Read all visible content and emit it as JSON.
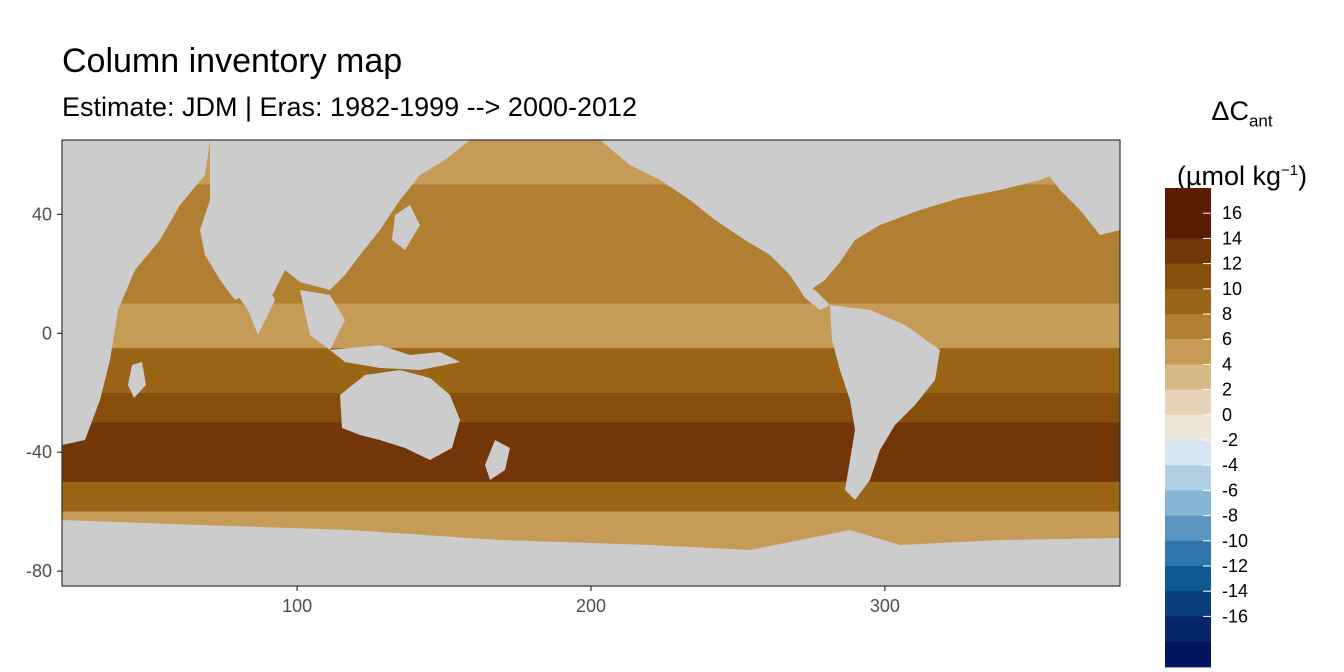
{
  "title": "Column inventory map",
  "subtitle": "Estimate: JDM  | Eras: 1982-1999 --> 2000-2012",
  "legend": {
    "title_symbol": "ΔC",
    "title_sub": "ant",
    "unit_prefix": "(µmol kg",
    "unit_sup": "−1",
    "unit_suffix": ")"
  },
  "chart_data": {
    "type": "heatmap",
    "title": "Column inventory map",
    "subtitle": "Estimate: JDM  | Eras: 1982-1999 --> 2000-2012",
    "xlim": [
      20,
      380
    ],
    "ylim": [
      -85,
      65
    ],
    "x_ticks": [
      100,
      200,
      300
    ],
    "y_ticks": [
      40,
      0,
      -40,
      -80
    ],
    "land_color": "#cccccc",
    "legend_bins": [
      {
        "label": "16",
        "color": "#5c1b03"
      },
      {
        "label": "14",
        "color": "#733608"
      },
      {
        "label": "12",
        "color": "#864f0b"
      },
      {
        "label": "10",
        "color": "#9a6516"
      },
      {
        "label": "8",
        "color": "#b07f31"
      },
      {
        "label": "6",
        "color": "#c69b58"
      },
      {
        "label": "4",
        "color": "#d6b889"
      },
      {
        "label": "2",
        "color": "#e6d2b4"
      },
      {
        "label": "0",
        "color": "#efe6da"
      },
      {
        "label": "-2",
        "color": "#d8e6ef"
      },
      {
        "label": "-4",
        "color": "#b1cfe2"
      },
      {
        "label": "-6",
        "color": "#88b5d3"
      },
      {
        "label": "-8",
        "color": "#5b96c3"
      },
      {
        "label": "-10",
        "color": "#2f76ad"
      },
      {
        "label": "-12",
        "color": "#0e5894"
      },
      {
        "label": "-14",
        "color": "#083e7a"
      },
      {
        "label": "-16",
        "color": "#062665"
      }
    ],
    "extra_bottom_color": "#021660",
    "zonal_bands": [
      {
        "lat_min": 50,
        "lat_max": 65,
        "value": 5
      },
      {
        "lat_min": 30,
        "lat_max": 50,
        "value": 7
      },
      {
        "lat_min": 10,
        "lat_max": 30,
        "value": 8
      },
      {
        "lat_min": -5,
        "lat_max": 10,
        "value": 6
      },
      {
        "lat_min": -20,
        "lat_max": -5,
        "value": 9
      },
      {
        "lat_min": -30,
        "lat_max": -20,
        "value": 11
      },
      {
        "lat_min": -50,
        "lat_max": -30,
        "value": 13
      },
      {
        "lat_min": -60,
        "lat_max": -50,
        "value": 9
      },
      {
        "lat_min": -72,
        "lat_max": -60,
        "value": 5
      }
    ]
  }
}
